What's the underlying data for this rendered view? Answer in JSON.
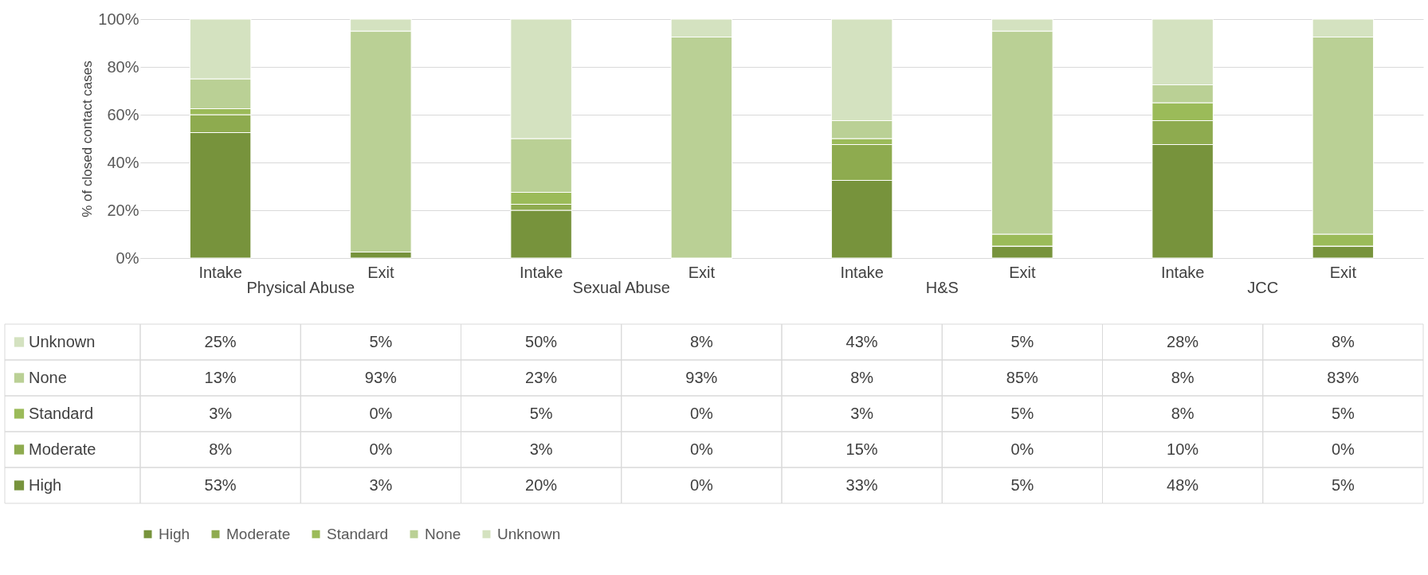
{
  "chart_data": {
    "type": "bar",
    "stacked": true,
    "ylabel": "% of closed contact cases",
    "categories": [
      "Intake",
      "Exit",
      "Intake",
      "Exit",
      "Intake",
      "Exit",
      "Intake",
      "Exit"
    ],
    "annotations": [
      "Physical Abuse",
      "Sexual Abuse",
      "H&S",
      "JCC"
    ],
    "ylim": [
      0,
      100
    ],
    "yticks": [
      {
        "value": 0,
        "label": "0%"
      },
      {
        "value": 20,
        "label": "20%"
      },
      {
        "value": 40,
        "label": "40%"
      },
      {
        "value": 60,
        "label": "60%"
      },
      {
        "value": 80,
        "label": "80%"
      },
      {
        "value": 100,
        "label": "100%"
      }
    ],
    "grid": "y",
    "legend": "bottom",
    "series": [
      {
        "name": "High",
        "color": "#77933c",
        "values": [
          52.5,
          2.5,
          20,
          0,
          32.5,
          5,
          47.5,
          5
        ],
        "value_labels": [
          "53%",
          "3%",
          "20%",
          "0%",
          "33%",
          "5%",
          "48%",
          "5%"
        ]
      },
      {
        "name": "Moderate",
        "color": "#8eab4f",
        "values": [
          7.5,
          0,
          2.5,
          0,
          15,
          0,
          10,
          0
        ],
        "value_labels": [
          "8%",
          "0%",
          "3%",
          "0%",
          "15%",
          "0%",
          "10%",
          "0%"
        ]
      },
      {
        "name": "Standard",
        "color": "#9bbb59",
        "values": [
          2.5,
          0,
          5,
          0,
          2.5,
          5,
          7.5,
          5
        ],
        "value_labels": [
          "3%",
          "0%",
          "5%",
          "0%",
          "3%",
          "5%",
          "8%",
          "5%"
        ]
      },
      {
        "name": "None",
        "color": "#bad095",
        "values": [
          12.5,
          92.5,
          22.5,
          92.5,
          7.5,
          85,
          7.5,
          82.5
        ],
        "value_labels": [
          "13%",
          "93%",
          "23%",
          "93%",
          "8%",
          "85%",
          "8%",
          "83%"
        ]
      },
      {
        "name": "Unknown",
        "color": "#d4e2c0",
        "values": [
          25,
          5,
          50,
          7.5,
          42.5,
          5,
          27.5,
          7.5
        ],
        "value_labels": [
          "25%",
          "5%",
          "50%",
          "8%",
          "43%",
          "5%",
          "28%",
          "8%"
        ]
      }
    ]
  }
}
